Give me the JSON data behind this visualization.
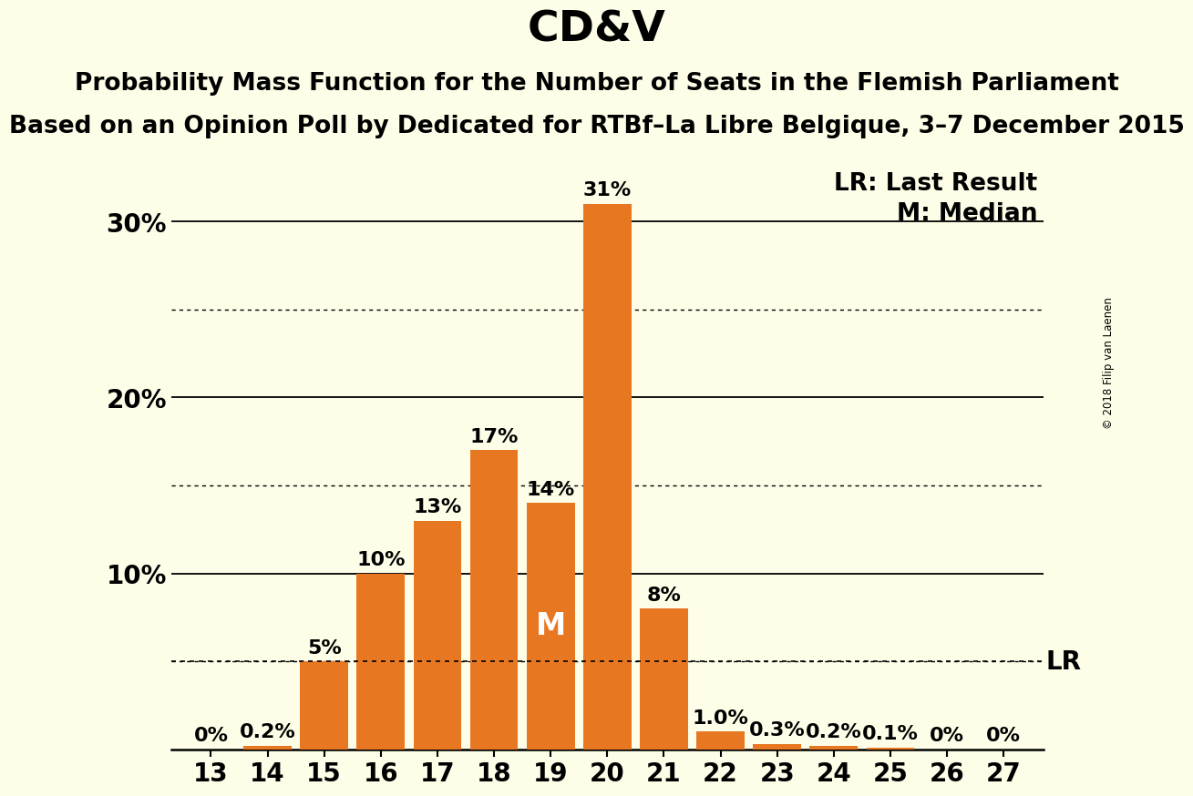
{
  "title": "CD&V",
  "subtitle1": "Probability Mass Function for the Number of Seats in the Flemish Parliament",
  "subtitle2": "Based on an Opinion Poll by Dedicated for RTBf–La Libre Belgique, 3–7 December 2015",
  "copyright": "© 2018 Filip van Laenen",
  "seats": [
    13,
    14,
    15,
    16,
    17,
    18,
    19,
    20,
    21,
    22,
    23,
    24,
    25,
    26,
    27
  ],
  "values": [
    0.0,
    0.2,
    5.0,
    10.0,
    13.0,
    17.0,
    14.0,
    31.0,
    8.0,
    1.0,
    0.3,
    0.2,
    0.1,
    0.0,
    0.0
  ],
  "labels": [
    "0%",
    "0.2%",
    "5%",
    "10%",
    "13%",
    "17%",
    "14%",
    "31%",
    "8%",
    "1.0%",
    "0.3%",
    "0.2%",
    "0.1%",
    "0%",
    "0%"
  ],
  "bar_color": "#E87722",
  "background_color": "#FEFEE8",
  "median_seat": 19,
  "last_result_value": 5.0,
  "last_result_label": "LR",
  "median_label": "M",
  "legend_lr": "LR: Last Result",
  "legend_m": "M: Median",
  "ylim_max": 33,
  "solid_yticks": [
    10,
    20,
    30
  ],
  "dotted_yticks": [
    5,
    15,
    25
  ],
  "title_fontsize": 34,
  "subtitle_fontsize": 19,
  "axis_tick_fontsize": 20,
  "bar_label_fontsize": 16,
  "legend_fontsize": 19,
  "median_text_fontsize": 24,
  "lr_label_fontsize": 20
}
